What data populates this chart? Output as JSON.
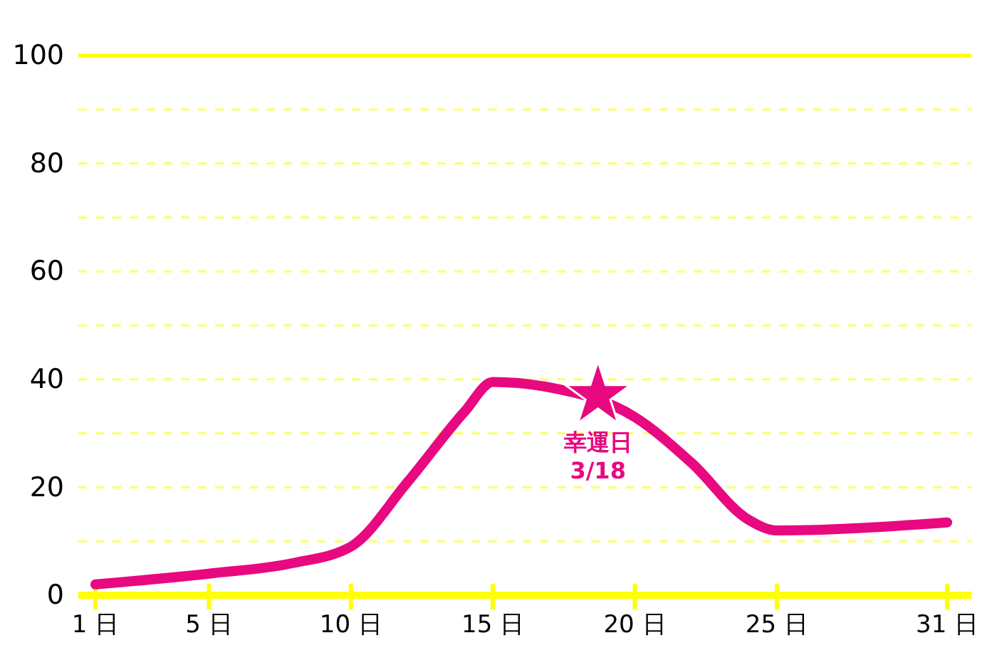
{
  "chart_data": {
    "type": "line",
    "x": [
      1,
      5,
      8,
      10,
      12,
      14,
      15,
      17,
      20,
      22,
      24,
      25,
      31
    ],
    "series": [
      {
        "color": "#e8087f",
        "values": [
          2,
          4,
          6,
          9,
          21,
          34,
          39.5,
          38.5,
          33,
          24.5,
          14,
          12,
          13.5
        ]
      }
    ],
    "xlim": [
      0.4,
      31.85
    ],
    "xticks": [
      {
        "value": 1,
        "label": "1 日"
      },
      {
        "value": 5,
        "label": "5 日"
      },
      {
        "value": 10,
        "label": "10 日"
      },
      {
        "value": 15,
        "label": "15 日"
      },
      {
        "value": 20,
        "label": "20 日"
      },
      {
        "value": 25,
        "label": "25 日"
      },
      {
        "value": 31,
        "label": "31 日"
      }
    ],
    "ylim": [
      0,
      100
    ],
    "yticks": [
      0,
      {
        "value": 10,
        "label": null
      },
      20,
      {
        "value": 30,
        "label": null
      },
      40,
      {
        "value": 50,
        "label": null
      },
      60,
      {
        "value": 70,
        "label": null
      },
      80,
      {
        "value": 90,
        "label": null
      },
      100
    ],
    "grid": "y",
    "marker": "none",
    "line_style": "solid",
    "annotations": [
      {
        "text": "幸運日\n3/18",
        "x": 18.7,
        "y": 37
      }
    ]
  }
}
